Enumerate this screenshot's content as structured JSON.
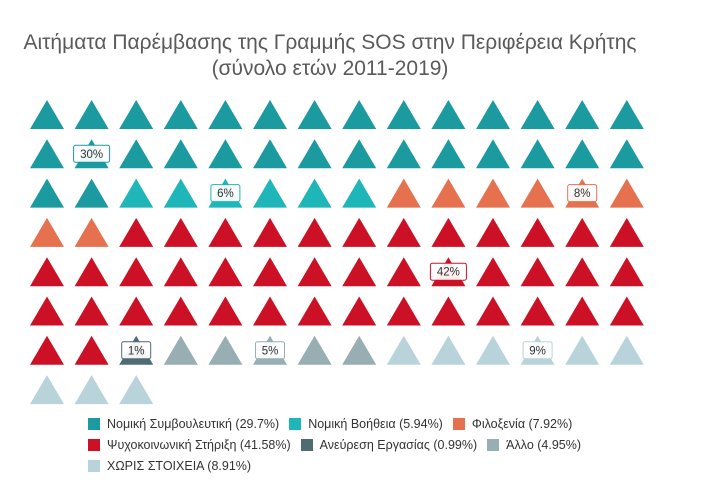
{
  "chart_data": {
    "type": "pictogram",
    "title": "Αιτήματα Παρέμβασης της Γραμμής SOS στην Περιφέρεια Κρήτης",
    "subtitle": "(σύνολο ετών 2011-2019)",
    "columns": 14,
    "series": [
      {
        "name": "Νομική Συμβουλευτική",
        "percent_label": "(29.7%)",
        "share": 29.7,
        "count": 30,
        "color": "#1b9aa0",
        "data_label": "30%",
        "label_cell": 15
      },
      {
        "name": "Νομική Βοήθεια",
        "percent_label": "(5.94%)",
        "share": 5.94,
        "count": 6,
        "color": "#1fb6b9",
        "data_label": "6%",
        "label_cell": 32
      },
      {
        "name": "Φιλοξενία",
        "percent_label": "(7.92%)",
        "share": 7.92,
        "count": 8,
        "color": "#e5714f",
        "data_label": "8%",
        "label_cell": 40
      },
      {
        "name": "Ψυχοκοινωνική Στήριξη",
        "percent_label": "(41.58%)",
        "share": 41.58,
        "count": 42,
        "color": "#cc1126",
        "data_label": "42%",
        "label_cell": 65
      },
      {
        "name": "Ανεύρεση Εργασίας",
        "percent_label": "(0.99%)",
        "share": 0.99,
        "count": 1,
        "color": "#4f6b73",
        "data_label": "1%",
        "label_cell": 86
      },
      {
        "name": "Άλλο",
        "percent_label": "(4.95%)",
        "share": 4.95,
        "count": 5,
        "color": "#97aeb3",
        "data_label": "5%",
        "label_cell": 89
      },
      {
        "name": "ΧΩΡΙΣ ΣΤΟΙΧΕΙΑ",
        "percent_label": "(8.91%)",
        "share": 8.91,
        "count": 9,
        "color": "#b8d3da",
        "data_label": "9%",
        "label_cell": 95
      }
    ],
    "legend_position": "bottom",
    "legend_rows": [
      [
        0,
        1,
        2
      ],
      [
        3,
        4,
        5
      ],
      [
        6
      ]
    ]
  }
}
